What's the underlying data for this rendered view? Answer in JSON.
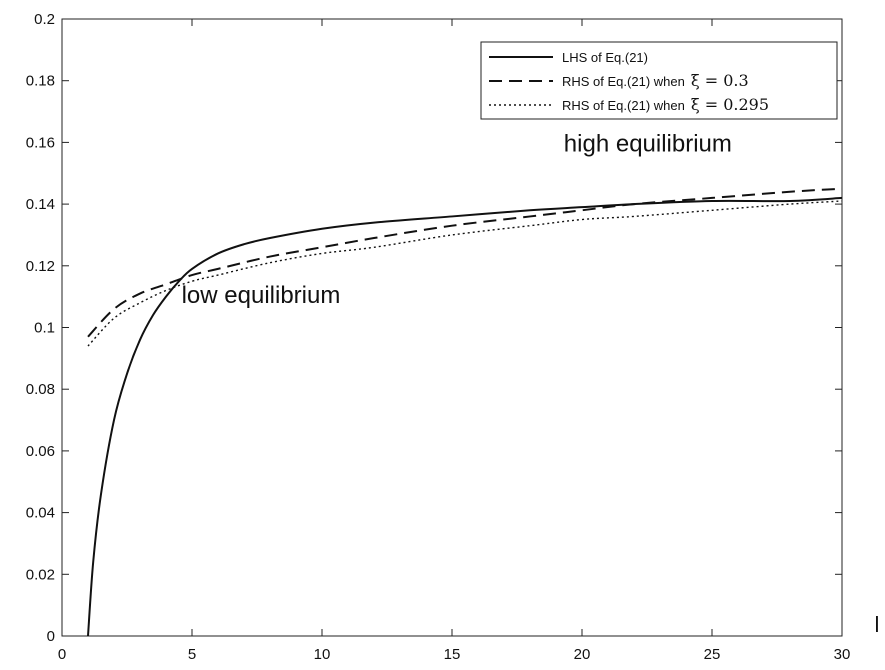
{
  "chart_data": {
    "type": "line",
    "title": "",
    "xlabel": "l",
    "ylabel": "",
    "xlim": [
      0,
      30
    ],
    "ylim": [
      0,
      0.2
    ],
    "x_ticks": [
      "0",
      "5",
      "10",
      "15",
      "20",
      "25",
      "30"
    ],
    "y_ticks": [
      "0",
      "0.02",
      "0.04",
      "0.06",
      "0.08",
      "0.1",
      "0.12",
      "0.14",
      "0.16",
      "0.18",
      "0.2"
    ],
    "grid": false,
    "legend_position": "top-right",
    "series": [
      {
        "name": "LHS of Eq.(21)",
        "label_prefix": "LHS of Eq.(21)",
        "label_math": "",
        "style": "solid",
        "x": [
          1,
          1.2,
          1.5,
          2,
          2.5,
          3,
          3.5,
          4,
          4.5,
          5,
          6,
          7,
          8,
          10,
          12,
          15,
          18,
          20,
          22,
          25,
          28,
          30
        ],
        "y": [
          0,
          0.024,
          0.046,
          0.07,
          0.085,
          0.096,
          0.104,
          0.11,
          0.115,
          0.119,
          0.124,
          0.127,
          0.129,
          0.132,
          0.134,
          0.136,
          0.138,
          0.139,
          0.14,
          0.141,
          0.141,
          0.142
        ]
      },
      {
        "name": "RHS of Eq.(21) when ξ = 0.3",
        "label_prefix": "RHS of Eq.(21) when",
        "label_math": "ξ = 0.3",
        "style": "dashed",
        "x": [
          1,
          2,
          3,
          4,
          5,
          6,
          8,
          10,
          12,
          15,
          18,
          20,
          22,
          25,
          28,
          30
        ],
        "y": [
          0.097,
          0.106,
          0.111,
          0.114,
          0.117,
          0.119,
          0.123,
          0.126,
          0.129,
          0.133,
          0.136,
          0.138,
          0.14,
          0.142,
          0.144,
          0.145
        ]
      },
      {
        "name": "RHS of Eq.(21) when ξ = 0.295",
        "label_prefix": "RHS of Eq.(21) when",
        "label_math": "ξ = 0.295",
        "style": "dotted",
        "x": [
          1,
          2,
          3,
          4,
          5,
          6,
          8,
          10,
          12,
          15,
          18,
          20,
          22,
          25,
          28,
          30
        ],
        "y": [
          0.094,
          0.103,
          0.108,
          0.112,
          0.115,
          0.117,
          0.121,
          0.124,
          0.126,
          0.13,
          0.133,
          0.135,
          0.136,
          0.138,
          0.14,
          0.141
        ]
      }
    ],
    "annotations": [
      {
        "text": "high equilibrium",
        "x": 19.3,
        "y": 0.157
      },
      {
        "text": "low equilibrium",
        "x": 4.6,
        "y": 0.108
      }
    ]
  }
}
